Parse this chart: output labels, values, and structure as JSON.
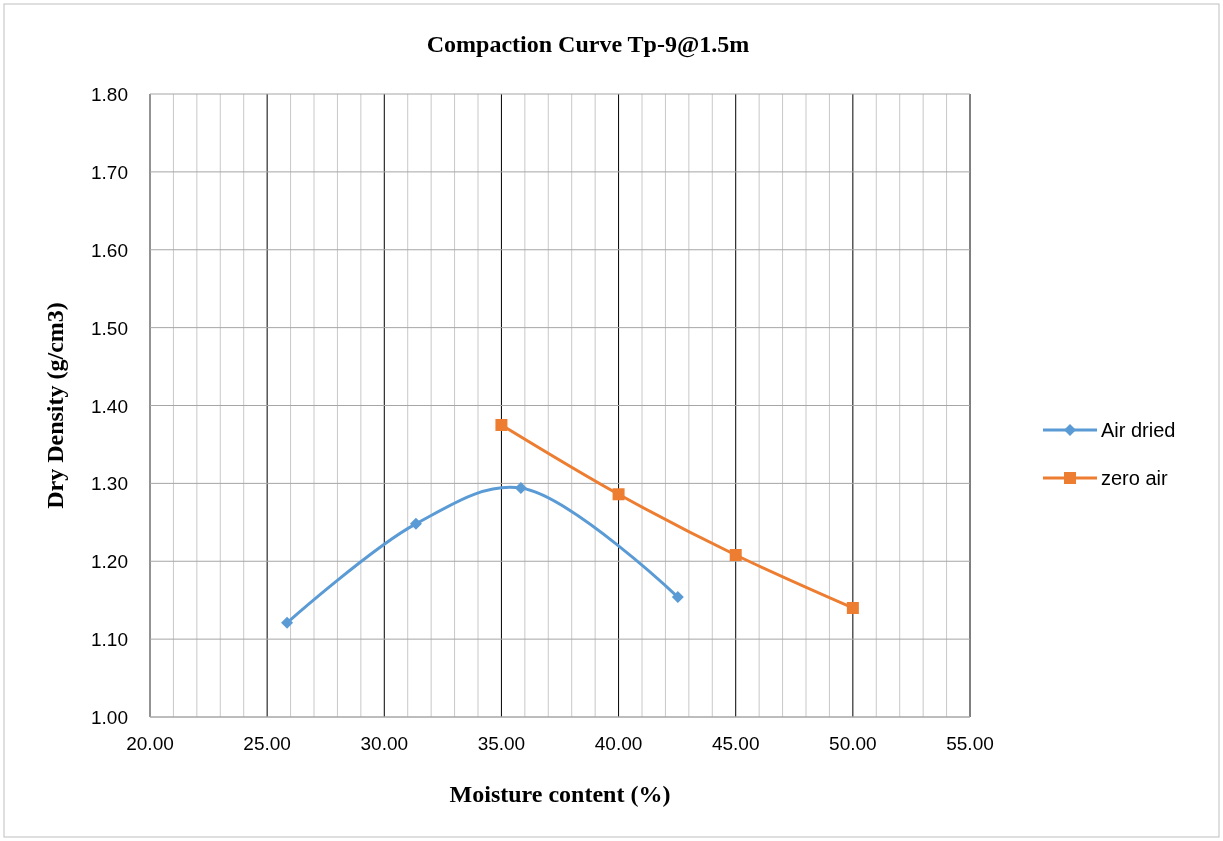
{
  "chart_data": {
    "type": "line",
    "title": "Compaction Curve Tp-9@1.5m",
    "xlabel": "Moisture content (%)",
    "ylabel": "Dry Density (g/cm3)",
    "series": [
      {
        "name": "Air dried",
        "color": "#5b9bd5",
        "marker": "diamond",
        "x": [
          25.85,
          31.35,
          35.83,
          42.53
        ],
        "values": [
          1.121,
          1.248,
          1.294,
          1.154
        ]
      },
      {
        "name": "zero air",
        "color": "#ed7d31",
        "marker": "square",
        "x": [
          35.0,
          40.0,
          45.0,
          50.0
        ],
        "values": [
          1.375,
          1.286,
          1.208,
          1.14
        ]
      }
    ],
    "xlim": [
      20,
      55
    ],
    "xticks": [
      {
        "value": 20,
        "label": "20.00"
      },
      {
        "value": 21,
        "label": null
      },
      {
        "value": 22,
        "label": null
      },
      {
        "value": 23,
        "label": null
      },
      {
        "value": 24,
        "label": null
      },
      {
        "value": 25,
        "label": "25.00"
      },
      {
        "value": 26,
        "label": null
      },
      {
        "value": 27,
        "label": null
      },
      {
        "value": 28,
        "label": null
      },
      {
        "value": 29,
        "label": null
      },
      {
        "value": 30,
        "label": "30.00"
      },
      {
        "value": 31,
        "label": null
      },
      {
        "value": 32,
        "label": null
      },
      {
        "value": 33,
        "label": null
      },
      {
        "value": 34,
        "label": null
      },
      {
        "value": 35,
        "label": "35.00"
      },
      {
        "value": 36,
        "label": null
      },
      {
        "value": 37,
        "label": null
      },
      {
        "value": 38,
        "label": null
      },
      {
        "value": 39,
        "label": null
      },
      {
        "value": 40,
        "label": "40.00"
      },
      {
        "value": 41,
        "label": null
      },
      {
        "value": 42,
        "label": null
      },
      {
        "value": 43,
        "label": null
      },
      {
        "value": 44,
        "label": null
      },
      {
        "value": 45,
        "label": "45.00"
      },
      {
        "value": 46,
        "label": null
      },
      {
        "value": 47,
        "label": null
      },
      {
        "value": 48,
        "label": null
      },
      {
        "value": 49,
        "label": null
      },
      {
        "value": 50,
        "label": "50.00"
      },
      {
        "value": 51,
        "label": null
      },
      {
        "value": 52,
        "label": null
      },
      {
        "value": 53,
        "label": null
      },
      {
        "value": 54,
        "label": null
      },
      {
        "value": 55,
        "label": "55.00"
      }
    ],
    "ylim": [
      1.0,
      1.8
    ],
    "yticks": [
      {
        "value": 1.0,
        "label": "1.00"
      },
      {
        "value": 1.1,
        "label": "1.10"
      },
      {
        "value": 1.2,
        "label": "1.20"
      },
      {
        "value": 1.3,
        "label": "1.30"
      },
      {
        "value": 1.4,
        "label": "1.40"
      },
      {
        "value": 1.5,
        "label": "1.50"
      },
      {
        "value": 1.6,
        "label": "1.60"
      },
      {
        "value": 1.7,
        "label": "1.70"
      },
      {
        "value": 1.8,
        "label": "1.80"
      }
    ],
    "grid": true,
    "legend": "right",
    "line_style": "solid"
  }
}
